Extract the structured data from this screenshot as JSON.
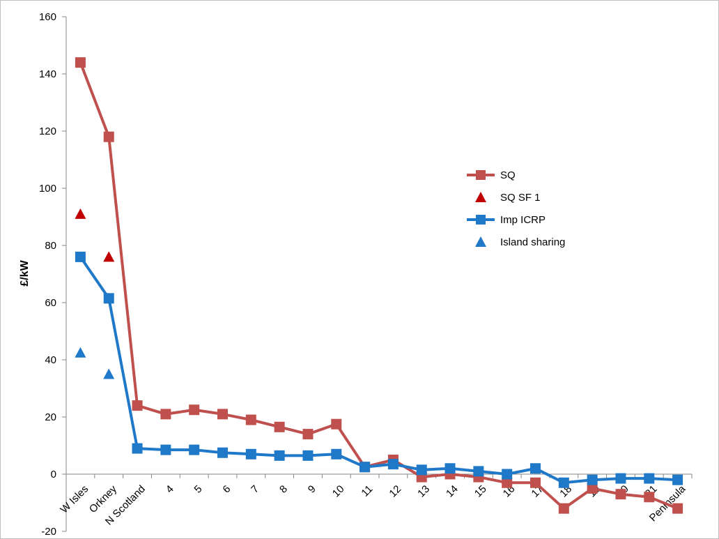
{
  "chart_data": {
    "type": "line",
    "title": "",
    "xlabel": "",
    "ylabel": "£/kW",
    "ylim": [
      -20,
      160
    ],
    "yticks": [
      -20,
      0,
      20,
      40,
      60,
      80,
      100,
      120,
      140,
      160
    ],
    "grid": false,
    "legend_position": "right",
    "categories": [
      "W Isles",
      "Orkney",
      "N Scotland",
      "4",
      "5",
      "6",
      "7",
      "8",
      "9",
      "10",
      "11",
      "12",
      "13",
      "14",
      "15",
      "16",
      "17",
      "18",
      "19",
      "20",
      "21",
      "Peninsula"
    ],
    "series": [
      {
        "name": "SQ",
        "kind": "line-square",
        "color": "#c0504d",
        "values": [
          144,
          118,
          24,
          21,
          22.5,
          21,
          19,
          16.5,
          14,
          17.5,
          2.5,
          5,
          -1,
          0,
          -1,
          -3,
          -3,
          -12,
          -5,
          -7,
          -8,
          -12
        ]
      },
      {
        "name": "SQ SF 1",
        "kind": "triangle",
        "color": "#c00000",
        "values": [
          91,
          76,
          null,
          null,
          null,
          null,
          null,
          null,
          null,
          null,
          null,
          null,
          null,
          null,
          null,
          null,
          null,
          null,
          null,
          null,
          null,
          null
        ]
      },
      {
        "name": "Imp ICRP",
        "kind": "line-square",
        "color": "#1f78c8",
        "values": [
          76,
          61.5,
          9,
          8.5,
          8.5,
          7.5,
          7,
          6.5,
          6.5,
          7,
          2.5,
          3.5,
          1.5,
          2,
          1,
          0,
          2,
          -3,
          -2,
          -1.5,
          -1.5,
          -2
        ]
      },
      {
        "name": "Island sharing",
        "kind": "triangle",
        "color": "#1f78c8",
        "values": [
          42.5,
          35,
          null,
          null,
          null,
          null,
          null,
          null,
          null,
          null,
          null,
          null,
          null,
          null,
          null,
          null,
          null,
          null,
          null,
          null,
          null,
          null
        ]
      }
    ]
  }
}
